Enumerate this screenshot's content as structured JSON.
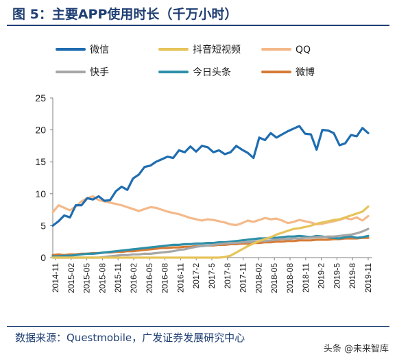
{
  "title": "图 5：主要APP使用时长（千万小时）",
  "source": "数据来源：Questmobile，广发证券发展研究中心",
  "watermark": "头条 @未来智库",
  "chart_data": {
    "type": "line",
    "ylim": [
      0,
      25
    ],
    "y_ticks": [
      "0",
      "5",
      "10",
      "15",
      "20",
      "25"
    ],
    "x_tick_labels": [
      "2014-11",
      "2015-02",
      "2015-05",
      "2015-08",
      "2015-11",
      "2016-02",
      "2016-05",
      "2016-08",
      "2016-11",
      "2017-2",
      "2017-5",
      "2017-8",
      "2017-11",
      "2018-02",
      "2018-05",
      "2018-08",
      "2018-11",
      "2019-2",
      "2019-5",
      "2019-8",
      "2019-11"
    ],
    "legend_placement": "top",
    "grid": false,
    "series": [
      {
        "name": "微信",
        "color": "#1f6db0",
        "values": [
          5.0,
          5.7,
          6.6,
          6.3,
          8.2,
          8.2,
          9.3,
          9.1,
          9.6,
          8.9,
          9.0,
          10.4,
          11.1,
          10.6,
          12.4,
          13.0,
          14.2,
          14.4,
          15.0,
          15.4,
          15.8,
          15.6,
          16.8,
          16.5,
          17.4,
          16.6,
          17.5,
          17.3,
          16.5,
          16.8,
          16.2,
          16.5,
          17.5,
          16.9,
          16.4,
          15.6,
          18.8,
          18.4,
          19.5,
          18.8,
          19.3,
          19.8,
          20.2,
          20.6,
          19.4,
          19.3,
          16.9,
          20.0,
          19.9,
          19.5,
          17.6,
          17.9,
          19.2,
          19.0,
          20.3,
          19.5
        ]
      },
      {
        "name": "抖音短视频",
        "color": "#e6c45a",
        "values": [
          0,
          0,
          0,
          0,
          0,
          0,
          0,
          0,
          0,
          0,
          0,
          0,
          0,
          0,
          0,
          0,
          0,
          0,
          0,
          0,
          0,
          0,
          0,
          0,
          0,
          0,
          0,
          0,
          0,
          0,
          0.1,
          0.3,
          0.8,
          1.3,
          1.8,
          2.2,
          2.6,
          2.9,
          3.2,
          3.6,
          3.9,
          4.2,
          4.5,
          4.6,
          4.8,
          5.0,
          5.3,
          5.5,
          5.7,
          5.9,
          6.0,
          6.3,
          6.6,
          6.9,
          7.2,
          8.0
        ]
      },
      {
        "name": "QQ",
        "color": "#f4b98a",
        "values": [
          7.1,
          8.2,
          7.8,
          7.4,
          8.0,
          8.8,
          9.3,
          9.6,
          9.0,
          8.8,
          8.6,
          8.4,
          8.2,
          7.9,
          7.6,
          7.3,
          7.6,
          7.9,
          7.8,
          7.5,
          7.2,
          7.0,
          6.8,
          6.5,
          6.2,
          6.0,
          5.8,
          6.0,
          5.9,
          5.7,
          5.5,
          5.2,
          5.1,
          5.4,
          5.8,
          5.6,
          5.9,
          6.2,
          6.0,
          6.1,
          5.8,
          5.4,
          5.6,
          5.9,
          5.7,
          5.5,
          5.2,
          5.3,
          5.5,
          5.7,
          5.9,
          6.2,
          6.0,
          6.3,
          5.8,
          6.5
        ]
      },
      {
        "name": "快手",
        "color": "#a6a6a6",
        "values": [
          0,
          0,
          0,
          0,
          0,
          0,
          0,
          0,
          0,
          0.1,
          0.2,
          0.3,
          0.4,
          0.4,
          0.5,
          0.5,
          0.6,
          0.6,
          0.7,
          0.8,
          0.9,
          1.0,
          1.2,
          1.3,
          1.5,
          1.7,
          1.8,
          1.9,
          2.0,
          2.1,
          2.2,
          2.3,
          2.3,
          2.4,
          2.4,
          2.5,
          2.6,
          2.6,
          2.7,
          2.8,
          2.9,
          2.9,
          3.0,
          3.0,
          3.1,
          3.1,
          3.2,
          3.2,
          3.3,
          3.3,
          3.4,
          3.5,
          3.6,
          3.8,
          4.1,
          4.5
        ]
      },
      {
        "name": "今日头条",
        "color": "#2e8fa8",
        "values": [
          0.2,
          0.2,
          0.3,
          0.3,
          0.4,
          0.5,
          0.6,
          0.6,
          0.7,
          0.8,
          0.9,
          1.0,
          1.1,
          1.2,
          1.3,
          1.4,
          1.5,
          1.6,
          1.7,
          1.8,
          1.9,
          2.0,
          2.0,
          2.1,
          2.1,
          2.2,
          2.2,
          2.3,
          2.3,
          2.4,
          2.4,
          2.5,
          2.6,
          2.7,
          2.8,
          2.9,
          3.0,
          3.0,
          3.1,
          3.1,
          3.2,
          3.3,
          3.3,
          3.4,
          3.3,
          3.2,
          3.4,
          3.3,
          3.2,
          3.1,
          3.0,
          3.2,
          3.3,
          3.1,
          3.2,
          3.4
        ]
      },
      {
        "name": "微博",
        "color": "#d67b35",
        "values": [
          0.4,
          0.5,
          0.4,
          0.5,
          0.5,
          0.6,
          0.6,
          0.7,
          0.7,
          0.8,
          0.8,
          0.9,
          0.9,
          1.0,
          1.0,
          1.1,
          1.2,
          1.3,
          1.4,
          1.5,
          1.5,
          1.6,
          1.6,
          1.7,
          1.7,
          1.8,
          1.8,
          1.9,
          1.9,
          2.0,
          2.0,
          2.1,
          2.1,
          2.2,
          2.2,
          2.3,
          2.3,
          2.4,
          2.4,
          2.5,
          2.5,
          2.6,
          2.6,
          2.7,
          2.7,
          2.7,
          2.8,
          2.8,
          2.8,
          2.9,
          2.9,
          3.0,
          3.0,
          3.0,
          3.1,
          3.1
        ]
      }
    ]
  }
}
